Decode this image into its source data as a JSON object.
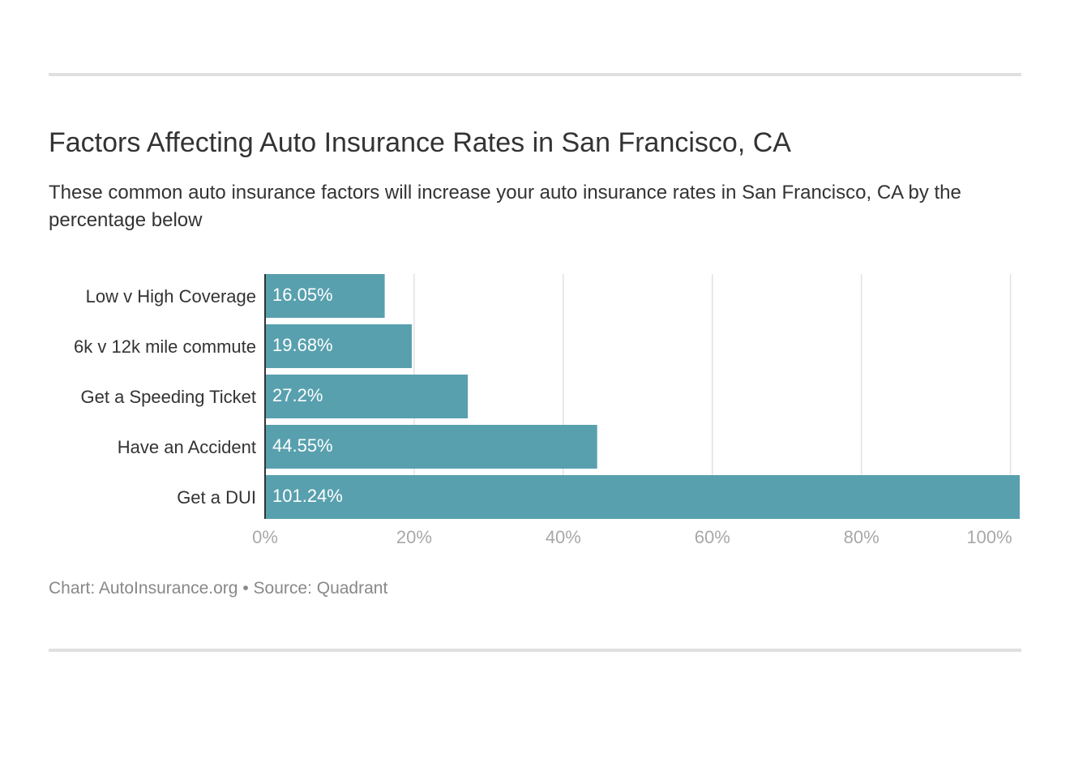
{
  "page": {
    "title": "Factors Affecting Auto Insurance Rates in San Francisco, CA",
    "subtitle": "These common auto insurance factors will increase your auto insurance rates in San Francisco, CA by the percentage below",
    "footer_chart": "Chart: AutoInsurance.org",
    "footer_separator": "•",
    "footer_source": "Source: Quadrant"
  },
  "colors": {
    "bar": "#58a0ae",
    "grid": "#e2e2e2",
    "axis": "#333333",
    "tick_text": "#a8a8a8",
    "label_text": "#333333",
    "value_text": "#ffffff"
  },
  "chart_data": {
    "type": "bar",
    "orientation": "horizontal",
    "title": "Factors Affecting Auto Insurance Rates in San Francisco, CA",
    "subtitle": "These common auto insurance factors will increase your auto insurance rates in San Francisco, CA by the percentage below",
    "xlabel": "",
    "ylabel": "",
    "categories": [
      "Low v High Coverage",
      "6k v 12k mile commute",
      "Get a Speeding Ticket",
      "Have an Accident",
      "Get a DUI"
    ],
    "values": [
      16.05,
      19.68,
      27.2,
      44.55,
      101.24
    ],
    "value_labels": [
      "16.05%",
      "19.68%",
      "27.2%",
      "44.55%",
      "101.24%"
    ],
    "x_ticks": [
      0,
      20,
      40,
      60,
      80,
      100
    ],
    "x_tick_labels": [
      "0%",
      "20%",
      "40%",
      "60%",
      "80%",
      "100%"
    ],
    "xlim": [
      0,
      101.24
    ],
    "grid": true,
    "legend": "none"
  }
}
